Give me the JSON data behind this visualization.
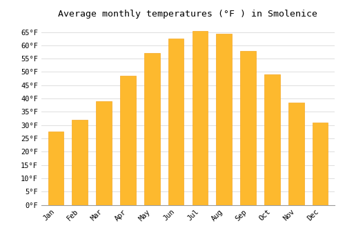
{
  "title": "Average monthly temperatures (°F ) in Smolenice",
  "months": [
    "Jan",
    "Feb",
    "Mar",
    "Apr",
    "May",
    "Jun",
    "Jul",
    "Aug",
    "Sep",
    "Oct",
    "Nov",
    "Dec"
  ],
  "values": [
    27.5,
    32.0,
    39.0,
    48.5,
    57.0,
    62.5,
    65.5,
    64.5,
    58.0,
    49.0,
    38.5,
    31.0
  ],
  "bar_color": "#FDB92E",
  "bar_edge_color": "#F5A623",
  "ylim": [
    0,
    68
  ],
  "yticks": [
    0,
    5,
    10,
    15,
    20,
    25,
    30,
    35,
    40,
    45,
    50,
    55,
    60,
    65
  ],
  "background_color": "#ffffff",
  "plot_bg_color": "#ffffff",
  "grid_color": "#dddddd",
  "title_fontsize": 9.5,
  "tick_fontsize": 7.5,
  "font_family": "monospace"
}
